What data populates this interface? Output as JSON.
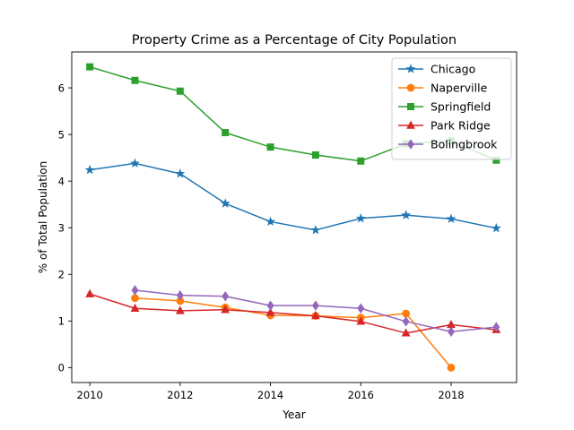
{
  "chart_data": {
    "type": "line",
    "title": "Property Crime as a Percentage of City Population",
    "xlabel": "Year",
    "ylabel": "% of Total Population",
    "xlim": [
      2009.6,
      2019.45
    ],
    "ylim": [
      -0.32,
      6.77
    ],
    "xticks": [
      2010,
      2012,
      2014,
      2016,
      2018
    ],
    "yticks": [
      0,
      1,
      2,
      3,
      4,
      5,
      6
    ],
    "grid": false,
    "legend_position": "upper right",
    "series": [
      {
        "name": "Chicago",
        "color": "#1f77b4",
        "marker": "star",
        "x": [
          2010,
          2011,
          2012,
          2013,
          2014,
          2015,
          2016,
          2017,
          2018,
          2019
        ],
        "y": [
          4.24,
          4.38,
          4.16,
          3.52,
          3.13,
          2.95,
          3.2,
          3.27,
          3.19,
          2.99
        ]
      },
      {
        "name": "Naperville",
        "color": "#ff7f0e",
        "marker": "circle",
        "x": [
          2011,
          2012,
          2013,
          2014,
          2015,
          2016,
          2017,
          2018
        ],
        "y": [
          1.49,
          1.43,
          1.29,
          1.12,
          1.11,
          1.07,
          1.16,
          0.0
        ]
      },
      {
        "name": "Springfield",
        "color": "#2ca02c",
        "marker": "square",
        "x": [
          2010,
          2011,
          2012,
          2013,
          2014,
          2015,
          2016,
          2017,
          2018,
          2019
        ],
        "y": [
          6.45,
          6.16,
          5.93,
          5.04,
          4.73,
          4.56,
          4.43,
          4.8,
          4.86,
          4.45
        ]
      },
      {
        "name": "Park Ridge",
        "color": "#d62728",
        "marker": "triangle",
        "x": [
          2010,
          2011,
          2012,
          2013,
          2014,
          2015,
          2016,
          2017,
          2018,
          2019
        ],
        "y": [
          1.58,
          1.27,
          1.22,
          1.24,
          1.18,
          1.11,
          0.99,
          0.74,
          0.92,
          0.81
        ]
      },
      {
        "name": "Bolingbrook",
        "color": "#9467bd",
        "marker": "diamond",
        "x": [
          2011,
          2012,
          2013,
          2014,
          2015,
          2016,
          2017,
          2018,
          2019
        ],
        "y": [
          1.66,
          1.55,
          1.53,
          1.33,
          1.33,
          1.27,
          0.99,
          0.77,
          0.87
        ]
      }
    ]
  }
}
